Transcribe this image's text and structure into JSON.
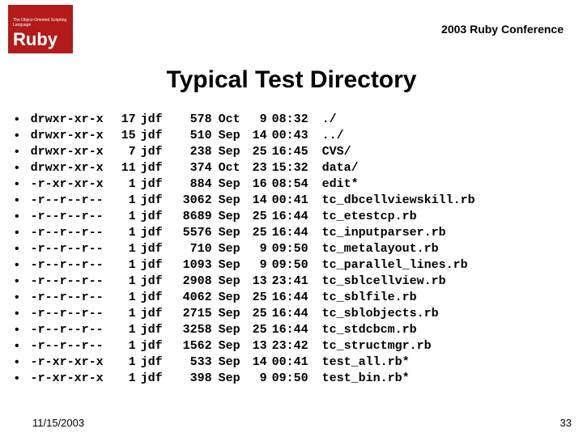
{
  "logo": {
    "tagline": "The Object-Oriented Scripting Language",
    "name": "Ruby"
  },
  "conference": "2003 Ruby Conference",
  "title": "Typical Test Directory",
  "listing": [
    {
      "perm": "drwxr-xr-x",
      "links": "17",
      "owner": "jdf",
      "size": "578",
      "month": "Oct",
      "day": "9",
      "time": "08:32",
      "name": "./"
    },
    {
      "perm": "drwxr-xr-x",
      "links": "15",
      "owner": "jdf",
      "size": "510",
      "month": "Sep",
      "day": "14",
      "time": "00:43",
      "name": "../"
    },
    {
      "perm": "drwxr-xr-x",
      "links": "7",
      "owner": "jdf",
      "size": "238",
      "month": "Sep",
      "day": "25",
      "time": "16:45",
      "name": "CVS/"
    },
    {
      "perm": "drwxr-xr-x",
      "links": "11",
      "owner": "jdf",
      "size": "374",
      "month": "Oct",
      "day": "23",
      "time": "15:32",
      "name": "data/"
    },
    {
      "perm": "-r-xr-xr-x",
      "links": "1",
      "owner": "jdf",
      "size": "884",
      "month": "Sep",
      "day": "16",
      "time": "08:54",
      "name": "edit*"
    },
    {
      "perm": "-r--r--r--",
      "links": "1",
      "owner": "jdf",
      "size": "3062",
      "month": "Sep",
      "day": "14",
      "time": "00:41",
      "name": "tc_dbcellviewskill.rb"
    },
    {
      "perm": "-r--r--r--",
      "links": "1",
      "owner": "jdf",
      "size": "8689",
      "month": "Sep",
      "day": "25",
      "time": "16:44",
      "name": "tc_etestcp.rb"
    },
    {
      "perm": "-r--r--r--",
      "links": "1",
      "owner": "jdf",
      "size": "5576",
      "month": "Sep",
      "day": "25",
      "time": "16:44",
      "name": "tc_inputparser.rb"
    },
    {
      "perm": "-r--r--r--",
      "links": "1",
      "owner": "jdf",
      "size": "710",
      "month": "Sep",
      "day": "9",
      "time": "09:50",
      "name": "tc_metalayout.rb"
    },
    {
      "perm": "-r--r--r--",
      "links": "1",
      "owner": "jdf",
      "size": "1093",
      "month": "Sep",
      "day": "9",
      "time": "09:50",
      "name": "tc_parallel_lines.rb"
    },
    {
      "perm": "-r--r--r--",
      "links": "1",
      "owner": "jdf",
      "size": "2908",
      "month": "Sep",
      "day": "13",
      "time": "23:41",
      "name": "tc_sblcellview.rb"
    },
    {
      "perm": "-r--r--r--",
      "links": "1",
      "owner": "jdf",
      "size": "4062",
      "month": "Sep",
      "day": "25",
      "time": "16:44",
      "name": "tc_sblfile.rb"
    },
    {
      "perm": "-r--r--r--",
      "links": "1",
      "owner": "jdf",
      "size": "2715",
      "month": "Sep",
      "day": "25",
      "time": "16:44",
      "name": "tc_sblobjects.rb"
    },
    {
      "perm": "-r--r--r--",
      "links": "1",
      "owner": "jdf",
      "size": "3258",
      "month": "Sep",
      "day": "25",
      "time": "16:44",
      "name": "tc_stdcbcm.rb"
    },
    {
      "perm": "-r--r--r--",
      "links": "1",
      "owner": "jdf",
      "size": "1562",
      "month": "Sep",
      "day": "13",
      "time": "23:42",
      "name": "tc_structmgr.rb"
    },
    {
      "perm": "-r-xr-xr-x",
      "links": "1",
      "owner": "jdf",
      "size": "533",
      "month": "Sep",
      "day": "14",
      "time": "00:41",
      "name": "test_all.rb*"
    },
    {
      "perm": "-r-xr-xr-x",
      "links": "1",
      "owner": "jdf",
      "size": "398",
      "month": "Sep",
      "day": "9",
      "time": "09:50",
      "name": "test_bin.rb*"
    }
  ],
  "footer": {
    "date": "11/15/2003",
    "page": "33"
  }
}
